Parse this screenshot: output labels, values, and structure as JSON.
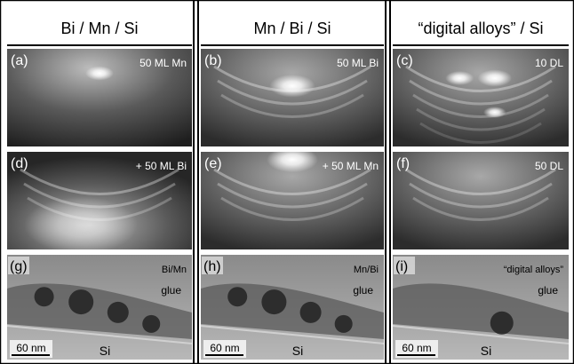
{
  "columns": [
    {
      "header": "Bi / Mn / Si",
      "panels": [
        {
          "label": "(a)",
          "caption": "50 ML Mn"
        },
        {
          "label": "(d)",
          "caption": "+ 50 ML Bi"
        },
        {
          "label": "(g)",
          "caption": "Bi/Mn",
          "layer": "glue",
          "scale_bar": "60 nm",
          "substrate": "Si"
        }
      ]
    },
    {
      "header": "Mn / Bi / Si",
      "panels": [
        {
          "label": "(b)",
          "caption": "50 ML Bi"
        },
        {
          "label": "(e)",
          "caption": "+ 50 ML Mn"
        },
        {
          "label": "(h)",
          "caption": "Mn/Bi",
          "layer": "glue",
          "scale_bar": "60 nm",
          "substrate": "Si"
        }
      ]
    },
    {
      "header": "“digital alloys” / Si",
      "panels": [
        {
          "label": "(c)",
          "caption": "10 DL"
        },
        {
          "label": "(f)",
          "caption": "50 DL"
        },
        {
          "label": "(i)",
          "caption": "“digital alloys”",
          "layer": "glue",
          "scale_bar": "60 nm",
          "substrate": "Si"
        }
      ]
    }
  ]
}
